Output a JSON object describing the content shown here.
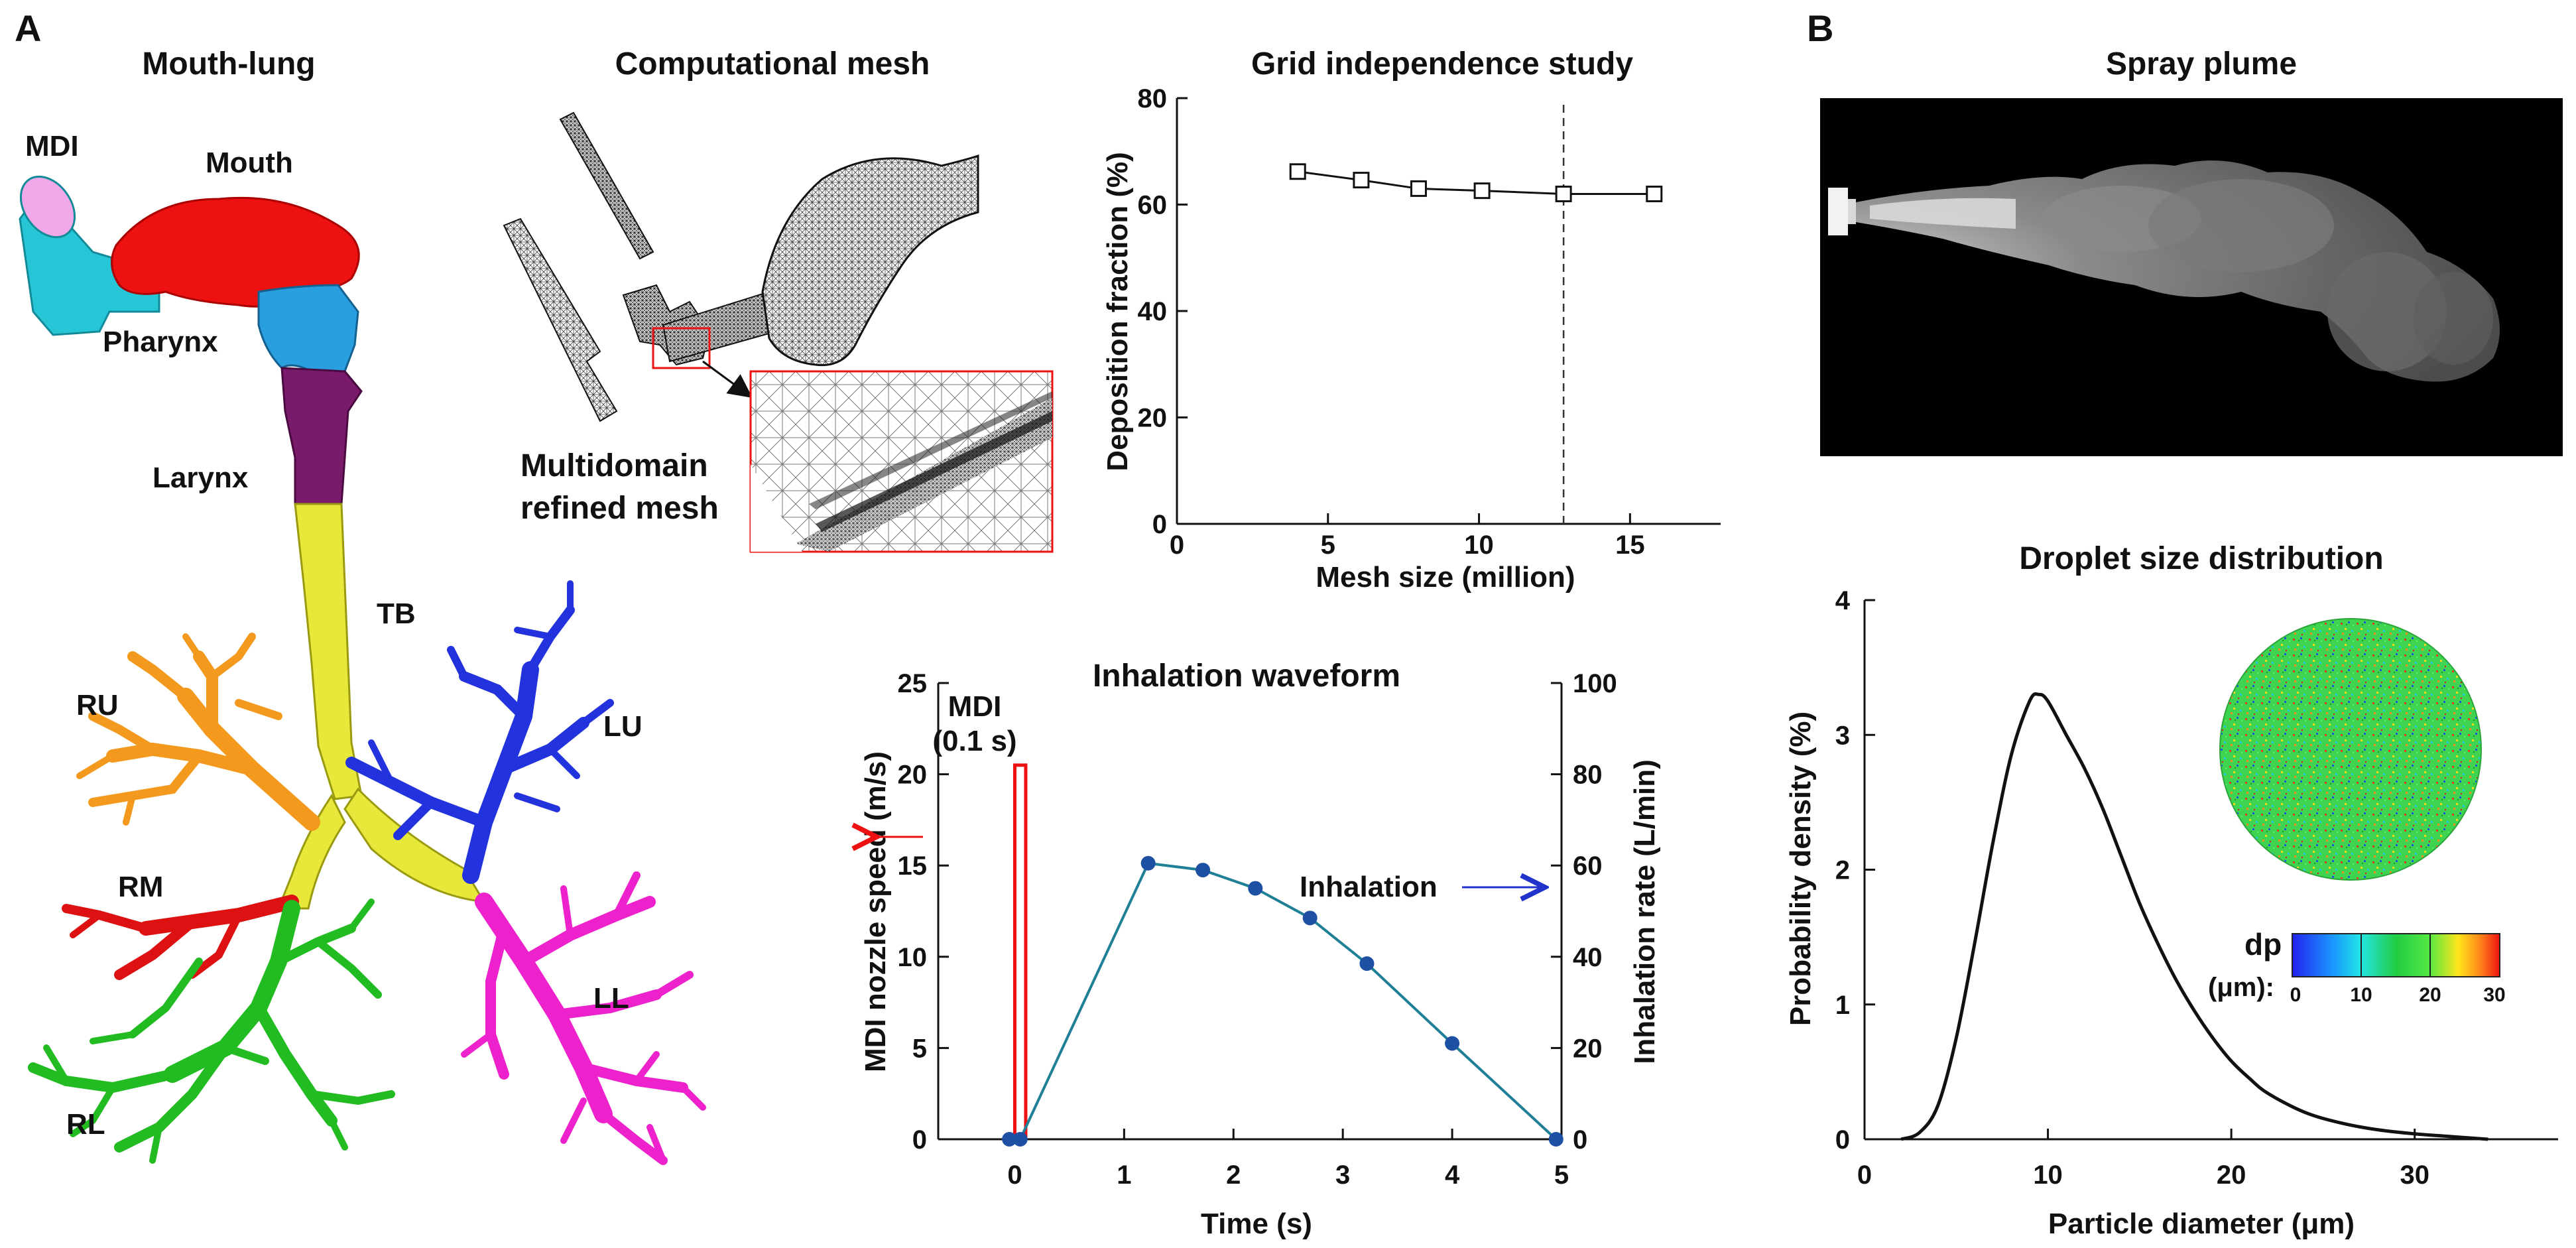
{
  "panel_a": {
    "letter": "A",
    "mouth_lung": {
      "title": "Mouth-lung",
      "labels": {
        "mdi": "MDI",
        "mouth": "Mouth",
        "pharynx": "Pharynx",
        "larynx": "Larynx",
        "tb": "TB",
        "ru": "RU",
        "rm": "RM",
        "rl": "RL",
        "lu": "LU",
        "ll": "LL"
      },
      "colors": {
        "mdi": "#26c6d6",
        "mouth": "#ee1111",
        "pharynx": "#2a9fe0",
        "larynx": "#7a1a6a",
        "tb": "#e8e83a",
        "ru": "#f39a1e",
        "rm": "#dd1111",
        "rl": "#22bb22",
        "lu": "#2233dd",
        "ll": "#ee22cc"
      }
    },
    "mesh": {
      "title": "Computational mesh",
      "label_line1": "Multidomain",
      "label_line2": "refined  mesh"
    },
    "grid_study": {
      "title": "Grid independence study"
    },
    "waveform": {
      "title": "Inhalation waveform",
      "mdi_label_line1": "MDI",
      "mdi_label_line2": "(0.1 s)",
      "inhalation_label": "Inhalation"
    }
  },
  "panel_b": {
    "letter": "B",
    "spray_title": "Spray plume",
    "droplet_title": "Droplet size distribution",
    "colorbar": {
      "label_line1": "dp",
      "label_line2": "(μm):",
      "ticks": [
        "0",
        "10",
        "20",
        "30"
      ]
    }
  },
  "chart_data": [
    {
      "id": "grid",
      "type": "line",
      "title": "Grid independence study",
      "xlabel": "Mesh size (million)",
      "ylabel": "Deposition fraction (%)",
      "xlim": [
        0,
        18
      ],
      "ylim": [
        0,
        80
      ],
      "xticks": [
        0,
        5,
        10,
        15
      ],
      "yticks": [
        0,
        20,
        40,
        60,
        80
      ],
      "x": [
        4.0,
        6.1,
        8.0,
        10.1,
        12.8,
        15.8
      ],
      "y": [
        66.2,
        64.6,
        63.0,
        62.6,
        62.0,
        62.0
      ],
      "marker": "square",
      "vline_x": 12.8
    },
    {
      "id": "waveform",
      "type": "line",
      "title": "Inhalation waveform",
      "xlabel": "Time (s)",
      "ylabel_left": "MDI nozzle speed (m/s)",
      "ylabel_right": "Inhalation rate (L/min)",
      "xlim": [
        -0.7,
        5.0
      ],
      "ylim_left": [
        0,
        25
      ],
      "ylim_right": [
        0,
        100
      ],
      "xticks": [
        0,
        1,
        2,
        3,
        4,
        5
      ],
      "yticks_left": [
        0,
        5,
        10,
        15,
        20,
        25
      ],
      "yticks_right": [
        0,
        20,
        40,
        60,
        80,
        100
      ],
      "x": [
        -0.05,
        0.05,
        1.22,
        1.72,
        2.2,
        2.7,
        3.22,
        4.0,
        4.95
      ],
      "y_right": [
        0,
        0,
        60.5,
        59.0,
        55.0,
        48.5,
        38.5,
        21.0,
        0
      ],
      "mdi_pulse": {
        "t_start": 0.0,
        "t_end": 0.1,
        "speed": 20.5
      },
      "line_color": "#1f7f96",
      "marker_color": "#1d4fa3",
      "pulse_color": "#ee1111"
    },
    {
      "id": "droplet",
      "type": "line",
      "title": "Droplet size distribution",
      "xlabel": "Particle diameter (μm)",
      "ylabel": "Probability density (%)",
      "xlim": [
        0,
        35
      ],
      "ylim": [
        0,
        4
      ],
      "xticks": [
        0,
        10,
        20,
        30
      ],
      "yticks": [
        0,
        1,
        2,
        3,
        4
      ],
      "x": [
        2,
        3,
        4,
        5,
        6,
        7,
        8,
        9,
        9.5,
        10,
        11,
        12,
        13,
        14,
        15,
        16,
        17,
        18,
        19,
        20,
        21,
        22,
        24,
        26,
        28,
        30,
        32,
        34
      ],
      "y": [
        0,
        0.05,
        0.25,
        0.75,
        1.45,
        2.2,
        2.85,
        3.25,
        3.3,
        3.25,
        3.0,
        2.75,
        2.45,
        2.1,
        1.75,
        1.45,
        1.18,
        0.95,
        0.75,
        0.58,
        0.45,
        0.34,
        0.2,
        0.12,
        0.07,
        0.04,
        0.02,
        0.0
      ]
    }
  ]
}
